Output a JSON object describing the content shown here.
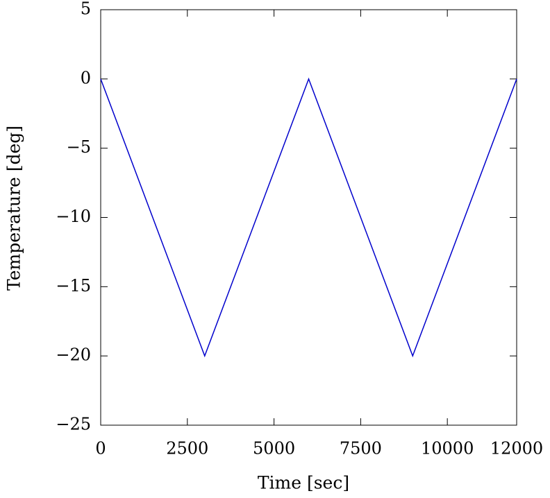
{
  "chart_data": {
    "type": "line",
    "xlabel": "Time [sec]",
    "ylabel": "Temperature [deg]",
    "x": [
      0,
      3000,
      6000,
      9000,
      12000
    ],
    "series": [
      {
        "color": "#0000cc",
        "values": [
          0,
          -20,
          0,
          -20,
          0
        ]
      }
    ],
    "xlim": [
      0,
      12000
    ],
    "xticks": [
      0,
      2500,
      5000,
      7500,
      10000,
      12000
    ],
    "ylim": [
      -25,
      5
    ],
    "yticks": [
      {
        "value": -25,
        "label": "−25"
      },
      {
        "value": -20,
        "label": "−20"
      },
      {
        "value": -15,
        "label": "−15"
      },
      {
        "value": -10,
        "label": "−10"
      },
      {
        "value": -5,
        "label": "−5"
      },
      0,
      5
    ],
    "grid": false
  }
}
